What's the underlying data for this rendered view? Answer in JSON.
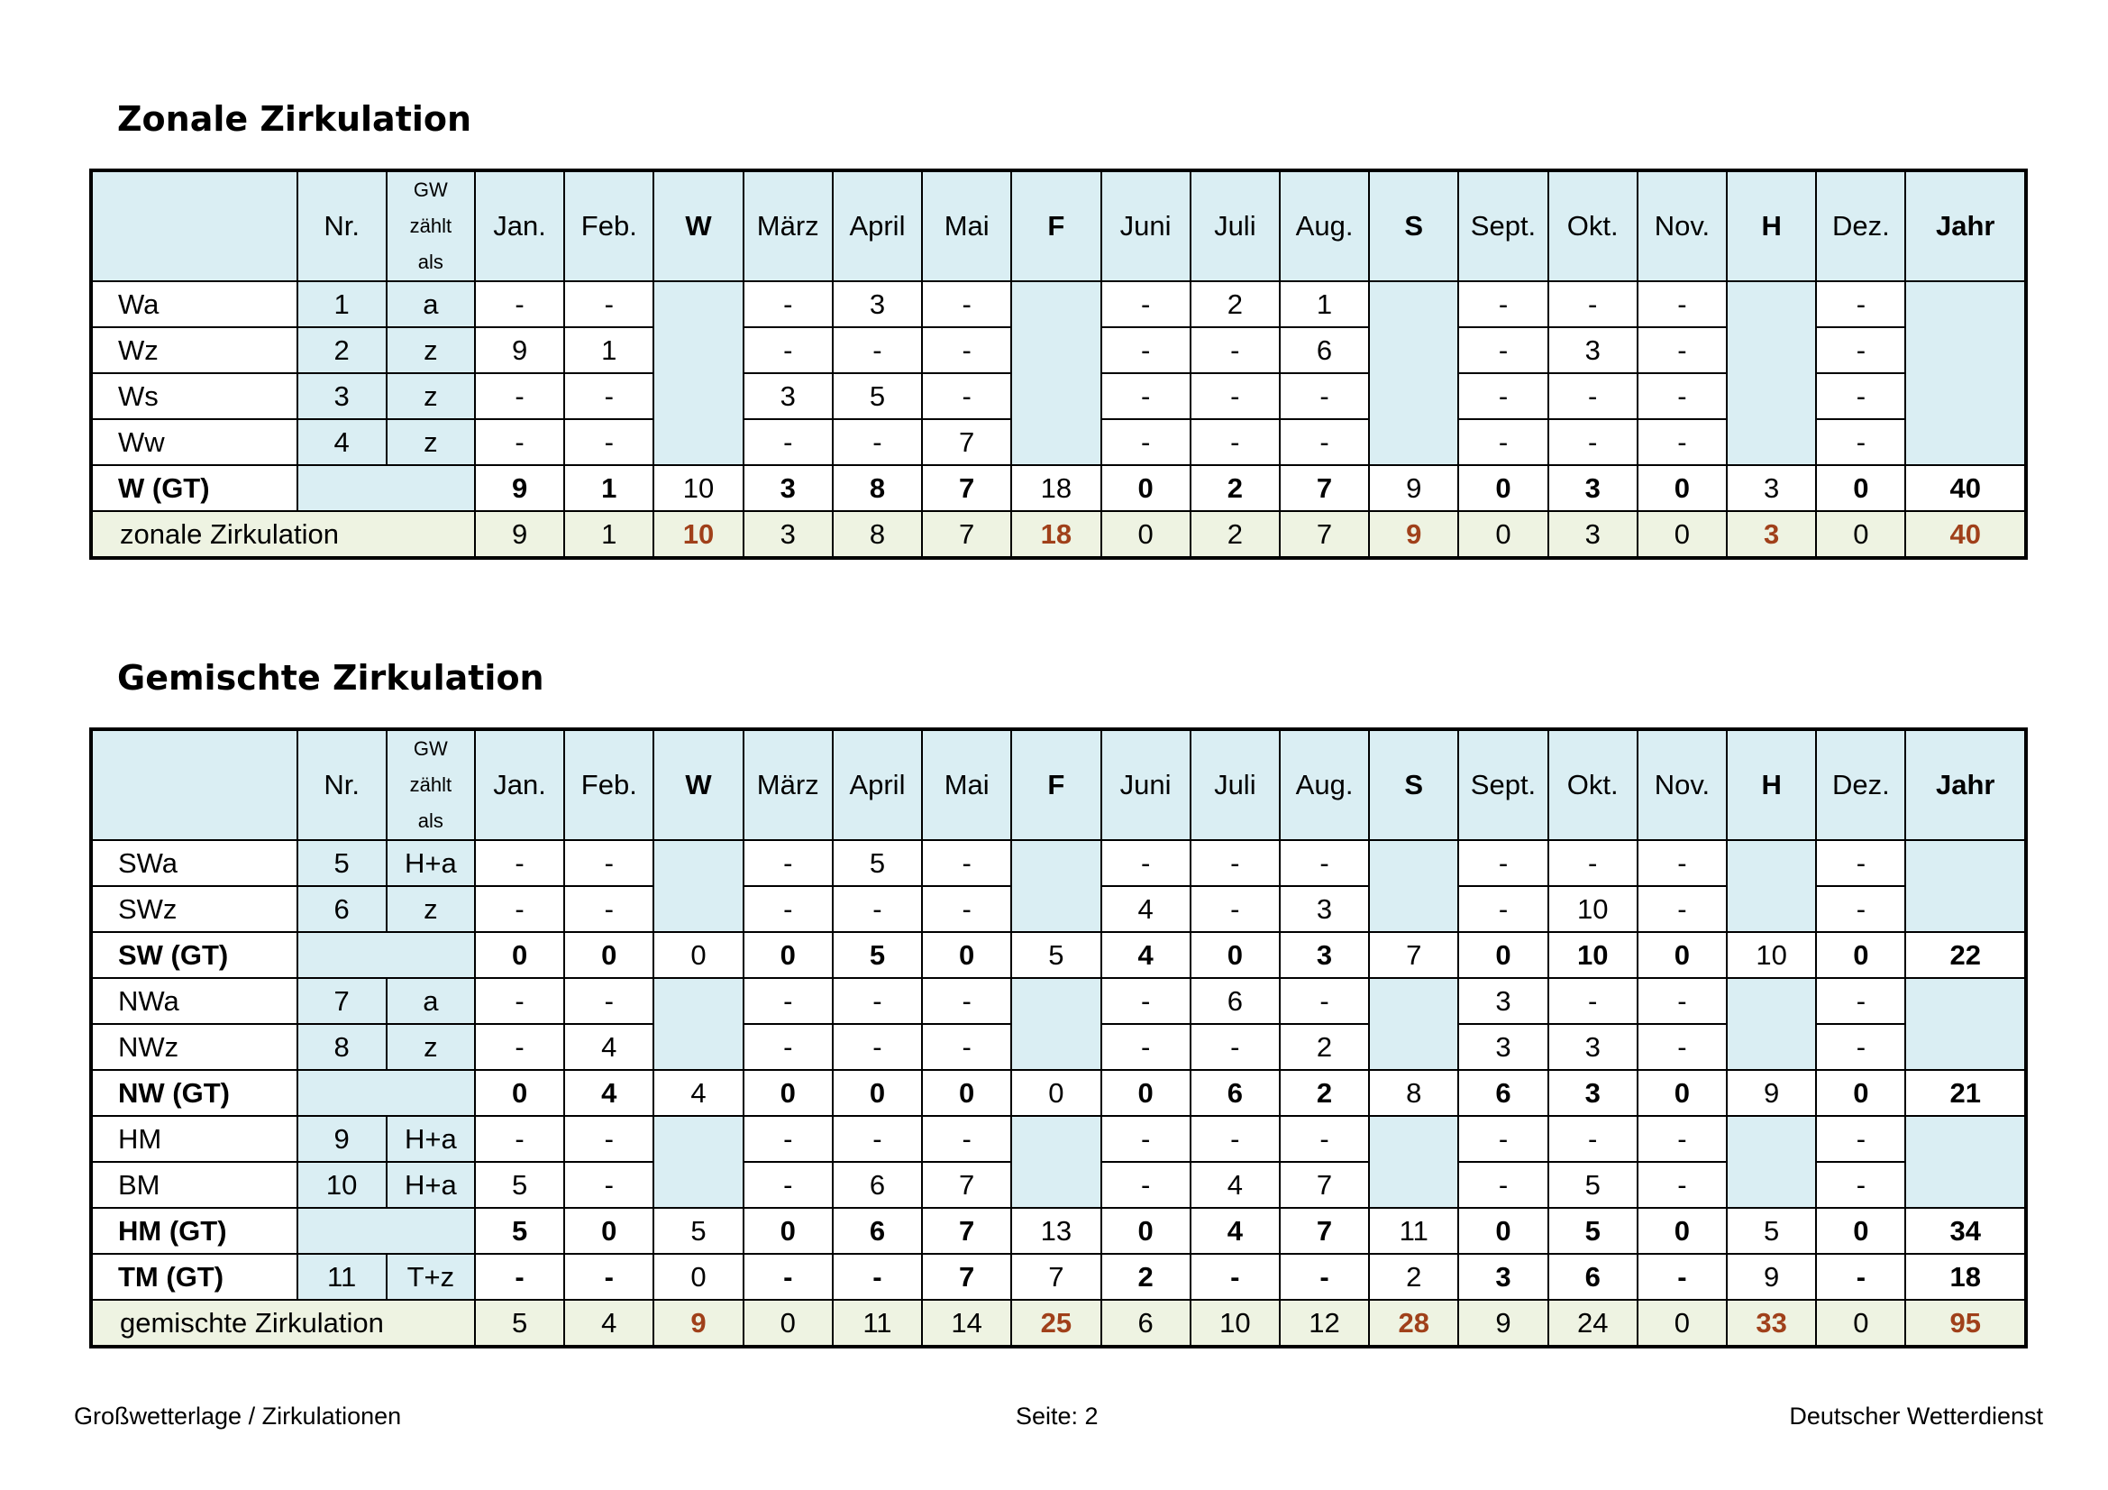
{
  "columns": [
    "",
    "Nr.",
    "GW zählt als",
    "Jan.",
    "Feb.",
    "W",
    "März",
    "April",
    "Mai",
    "F",
    "Juni",
    "Juli",
    "Aug.",
    "S",
    "Sept.",
    "Okt.",
    "Nov.",
    "H",
    "Dez.",
    "Jahr"
  ],
  "gw_header": [
    "GW",
    "zählt",
    "als"
  ],
  "zonal": {
    "title": "Zonale Zirkulation",
    "rows": [
      {
        "label": "Wa",
        "nr": "1",
        "gw": "a",
        "months": [
          "-",
          "-",
          "-",
          "3",
          "-",
          "-",
          "2",
          "1",
          "-",
          "-",
          "-",
          "-"
        ]
      },
      {
        "label": "Wz",
        "nr": "2",
        "gw": "z",
        "months": [
          "9",
          "1",
          "-",
          "-",
          "-",
          "-",
          "-",
          "6",
          "-",
          "3",
          "-",
          "-"
        ]
      },
      {
        "label": "Ws",
        "nr": "3",
        "gw": "z",
        "months": [
          "-",
          "-",
          "3",
          "5",
          "-",
          "-",
          "-",
          "-",
          "-",
          "-",
          "-",
          "-"
        ]
      },
      {
        "label": "Ww",
        "nr": "4",
        "gw": "z",
        "months": [
          "-",
          "-",
          "-",
          "-",
          "7",
          "-",
          "-",
          "-",
          "-",
          "-",
          "-",
          "-"
        ]
      }
    ],
    "gt": {
      "label": "W (GT)",
      "months": [
        "9",
        "1",
        "3",
        "8",
        "7",
        "0",
        "2",
        "7",
        "0",
        "3",
        "0",
        "0"
      ],
      "seasons": [
        "10",
        "18",
        "9",
        "3"
      ],
      "jahr": "40"
    },
    "sum": {
      "label": "zonale Zirkulation",
      "months": [
        "9",
        "1",
        "3",
        "8",
        "7",
        "0",
        "2",
        "7",
        "0",
        "3",
        "0",
        "0"
      ],
      "seasons": [
        "10",
        "18",
        "9",
        "3"
      ],
      "jahr": "40"
    }
  },
  "mixed": {
    "title": "Gemischte Zirkulation",
    "sw": [
      {
        "label": "SWa",
        "nr": "5",
        "gw": "H+a",
        "months": [
          "-",
          "-",
          "-",
          "5",
          "-",
          "-",
          "-",
          "-",
          "-",
          "-",
          "-",
          "-"
        ]
      },
      {
        "label": "SWz",
        "nr": "6",
        "gw": "z",
        "months": [
          "-",
          "-",
          "-",
          "-",
          "-",
          "4",
          "-",
          "3",
          "-",
          "10",
          "-",
          "-"
        ]
      }
    ],
    "sw_gt": {
      "label": "SW (GT)",
      "months": [
        "0",
        "0",
        "0",
        "5",
        "0",
        "4",
        "0",
        "3",
        "0",
        "10",
        "0",
        "0"
      ],
      "seasons": [
        "0",
        "5",
        "7",
        "10"
      ],
      "jahr": "22"
    },
    "nw": [
      {
        "label": "NWa",
        "nr": "7",
        "gw": "a",
        "months": [
          "-",
          "-",
          "-",
          "-",
          "-",
          "-",
          "6",
          "-",
          "3",
          "-",
          "-",
          "-"
        ]
      },
      {
        "label": "NWz",
        "nr": "8",
        "gw": "z",
        "months": [
          "-",
          "4",
          "-",
          "-",
          "-",
          "-",
          "-",
          "2",
          "3",
          "3",
          "-",
          "-"
        ]
      }
    ],
    "nw_gt": {
      "label": "NW (GT)",
      "months": [
        "0",
        "4",
        "0",
        "0",
        "0",
        "0",
        "6",
        "2",
        "6",
        "3",
        "0",
        "0"
      ],
      "seasons": [
        "4",
        "0",
        "8",
        "9"
      ],
      "jahr": "21"
    },
    "hm": [
      {
        "label": "HM",
        "nr": "9",
        "gw": "H+a",
        "months": [
          "-",
          "-",
          "-",
          "-",
          "-",
          "-",
          "-",
          "-",
          "-",
          "-",
          "-",
          "-"
        ]
      },
      {
        "label": "BM",
        "nr": "10",
        "gw": "H+a",
        "months": [
          "5",
          "-",
          "-",
          "6",
          "7",
          "-",
          "4",
          "7",
          "-",
          "5",
          "-",
          "-"
        ]
      }
    ],
    "hm_gt": {
      "label": "HM (GT)",
      "months": [
        "5",
        "0",
        "0",
        "6",
        "7",
        "0",
        "4",
        "7",
        "0",
        "5",
        "0",
        "0"
      ],
      "seasons": [
        "5",
        "13",
        "11",
        "5"
      ],
      "jahr": "34"
    },
    "tm_gt": {
      "label": "TM (GT)",
      "nr": "11",
      "gw": "T+z",
      "months": [
        "-",
        "-",
        "-",
        "-",
        "7",
        "2",
        "-",
        "-",
        "3",
        "6",
        "-",
        "-"
      ],
      "seasons": [
        "0",
        "7",
        "2",
        "9"
      ],
      "jahr": "18"
    },
    "sum": {
      "label": "gemischte Zirkulation",
      "months": [
        "5",
        "4",
        "0",
        "11",
        "14",
        "6",
        "10",
        "12",
        "9",
        "24",
        "0",
        "0"
      ],
      "seasons": [
        "9",
        "25",
        "28",
        "33"
      ],
      "jahr": "95"
    }
  },
  "footer": {
    "left": "Großwetterlage / Zirkulationen",
    "center": "Seite: 2",
    "right": "Deutscher Wetterdienst"
  }
}
